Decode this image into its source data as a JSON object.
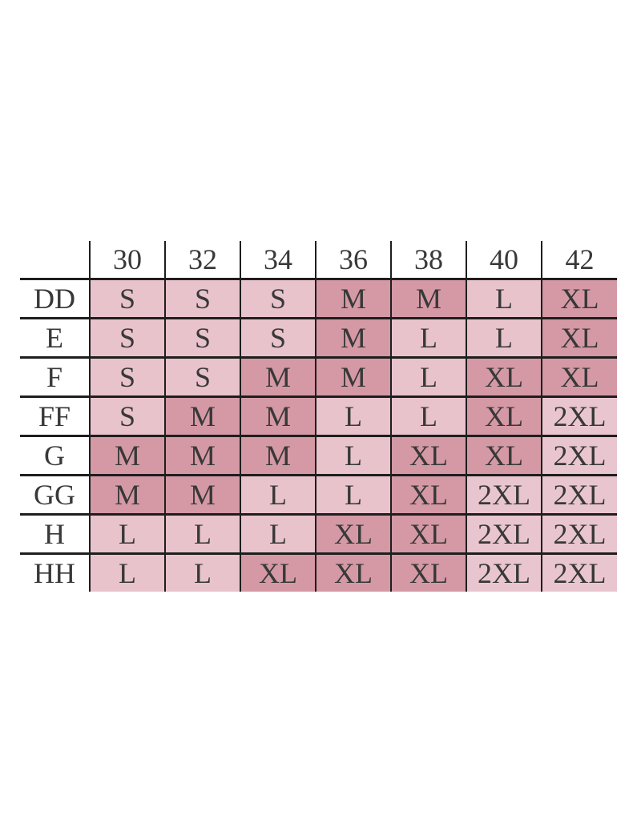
{
  "page": {
    "background_color": "#ffffff"
  },
  "chart_data": {
    "type": "table",
    "title": "",
    "columns": [
      "",
      "30",
      "32",
      "34",
      "36",
      "38",
      "40",
      "42"
    ],
    "rows": [
      {
        "label": "DD",
        "cells": [
          "S",
          "S",
          "S",
          "M",
          "M",
          "L",
          "XL"
        ]
      },
      {
        "label": "E",
        "cells": [
          "S",
          "S",
          "S",
          "M",
          "L",
          "L",
          "XL"
        ]
      },
      {
        "label": "F",
        "cells": [
          "S",
          "S",
          "M",
          "M",
          "L",
          "XL",
          "XL"
        ]
      },
      {
        "label": "FF",
        "cells": [
          "S",
          "M",
          "M",
          "L",
          "L",
          "XL",
          "2XL"
        ]
      },
      {
        "label": "G",
        "cells": [
          "M",
          "M",
          "M",
          "L",
          "XL",
          "XL",
          "2XL"
        ]
      },
      {
        "label": "GG",
        "cells": [
          "M",
          "M",
          "L",
          "L",
          "XL",
          "2XL",
          "2XL"
        ]
      },
      {
        "label": "H",
        "cells": [
          "L",
          "L",
          "L",
          "XL",
          "XL",
          "2XL",
          "2XL"
        ]
      },
      {
        "label": "HH",
        "cells": [
          "L",
          "L",
          "XL",
          "XL",
          "XL",
          "2XL",
          "2XL"
        ]
      }
    ],
    "size_colors": {
      "S": "#e8c3cc",
      "M": "#d499a5",
      "L": "#e8c3cc",
      "XL": "#d499a5",
      "2XL": "#e9c6cf"
    },
    "layout_hints": {
      "grid": "on",
      "border_color": "#1e1e1e",
      "text_color": "#383838",
      "header_background": "#ffffff",
      "label_column_background": "#ffffff"
    }
  }
}
